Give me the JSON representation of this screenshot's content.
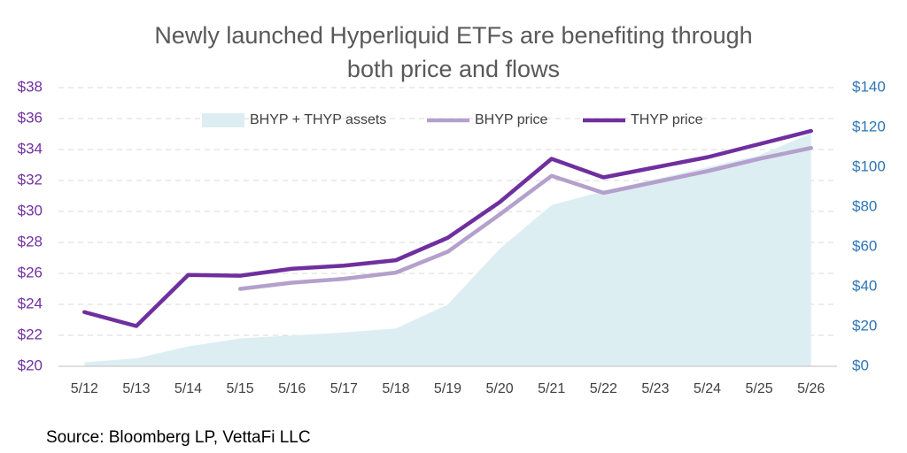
{
  "chart_data": {
    "type": "line",
    "title_lines": [
      "Newly launched Hyperliquid ETFs are benefiting through",
      "both price and flows"
    ],
    "source": "Source: Bloomberg LP, VettaFi LLC",
    "categories": [
      "5/12",
      "5/13",
      "5/14",
      "5/15",
      "5/16",
      "5/17",
      "5/18",
      "5/19",
      "5/20",
      "5/21",
      "5/22",
      "5/23",
      "5/24",
      "5/25",
      "5/26"
    ],
    "series": [
      {
        "name": "BHYP + THYP assets",
        "type": "area",
        "axis": "y2",
        "color": "#ddeef3",
        "values": [
          2,
          4,
          10,
          14,
          15.5,
          17,
          19,
          31,
          59,
          81,
          88,
          94,
          100,
          106,
          117
        ]
      },
      {
        "name": "BHYP price",
        "type": "line",
        "color": "#b4a0cc",
        "values": [
          null,
          null,
          null,
          25.0,
          25.4,
          25.65,
          26.05,
          27.4,
          29.8,
          32.3,
          31.2,
          31.9,
          32.6,
          33.4,
          34.1
        ]
      },
      {
        "name": "THYP price",
        "type": "line",
        "color": "#6f2f9f",
        "values": [
          23.5,
          22.6,
          25.9,
          25.85,
          26.3,
          26.5,
          26.85,
          28.3,
          30.6,
          33.4,
          32.2,
          32.85,
          33.5,
          34.35,
          35.2
        ]
      }
    ],
    "ylim": [
      20,
      38
    ],
    "yticks": [
      {
        "value": 20,
        "label": "$20"
      },
      {
        "value": 22,
        "label": "$22"
      },
      {
        "value": 24,
        "label": "$24"
      },
      {
        "value": 26,
        "label": "$26"
      },
      {
        "value": 28,
        "label": "$28"
      },
      {
        "value": 30,
        "label": "$30"
      },
      {
        "value": 32,
        "label": "$32"
      },
      {
        "value": 34,
        "label": "$34"
      },
      {
        "value": 36,
        "label": "$36"
      },
      {
        "value": 38,
        "label": "$38"
      }
    ],
    "y2lim": [
      0,
      140
    ],
    "y2ticks": [
      {
        "value": 0,
        "label": "$0"
      },
      {
        "value": 20,
        "label": "$20"
      },
      {
        "value": 40,
        "label": "$40"
      },
      {
        "value": 60,
        "label": "$60"
      },
      {
        "value": 80,
        "label": "$80"
      },
      {
        "value": 100,
        "label": "$100"
      },
      {
        "value": 120,
        "label": "$120"
      },
      {
        "value": 140,
        "label": "$140"
      }
    ],
    "yaxis_color": "#7030a0",
    "y2axis_color": "#2e75b6",
    "grid": true,
    "legend": "top"
  }
}
